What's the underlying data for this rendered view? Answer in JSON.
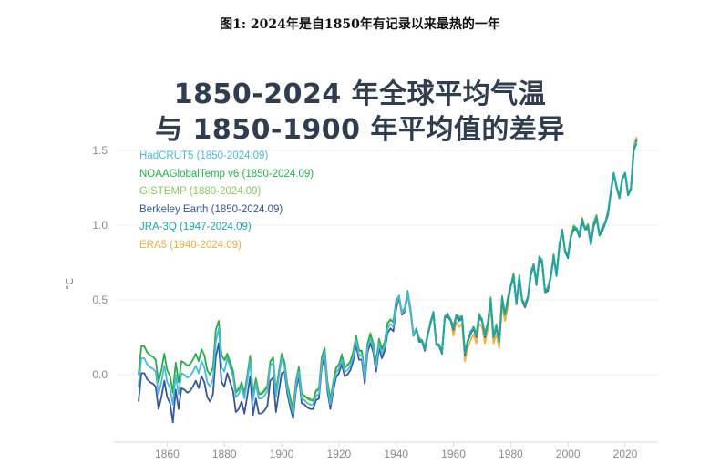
{
  "caption": "图1: 2024年是自1850年有记录以来最热的一年",
  "chart_data": {
    "type": "line",
    "title": [
      "1850-2024 年全球平均气温",
      "与 1850-1900 年平均值的差异"
    ],
    "ylabel": "°C",
    "xlim": [
      1840,
      2033
    ],
    "ylim": [
      -0.45,
      1.62
    ],
    "xticks": [
      1860,
      1880,
      1900,
      1920,
      1940,
      1960,
      1980,
      2000,
      2020
    ],
    "yticks": [
      0.0,
      0.5,
      1.0,
      1.5
    ],
    "ytick_labels": [
      "0.0",
      "0.5",
      "1.0",
      "1.5"
    ],
    "grid": "horizontal",
    "legend_position": "top-left",
    "series": [
      {
        "name": "HadCRUT5 (1850-2024.09)",
        "color": "#4db8dc",
        "start": 1850,
        "values": [
          -0.08,
          0.11,
          0.11,
          0.07,
          0.05,
          0.04,
          0.02,
          -0.13,
          -0.05,
          0.06,
          -0.05,
          -0.09,
          -0.2,
          0.0,
          -0.13,
          0.01,
          0.0,
          -0.02,
          -0.01,
          0.02,
          0.06,
          0.01,
          0.09,
          0.05,
          -0.05,
          -0.08,
          -0.03,
          0.22,
          0.31,
          0.05,
          0.02,
          0.11,
          0.05,
          -0.01,
          -0.15,
          -0.13,
          -0.08,
          -0.16,
          -0.04,
          0.09,
          -0.17,
          -0.06,
          -0.16,
          -0.16,
          -0.14,
          -0.11,
          0.06,
          0.08,
          -0.15,
          -0.02,
          0.11,
          0.05,
          -0.1,
          -0.19,
          -0.26,
          -0.07,
          0.02,
          -0.16,
          -0.17,
          -0.19,
          -0.2,
          -0.2,
          -0.14,
          -0.13,
          0.08,
          0.15,
          -0.08,
          -0.2,
          -0.08,
          0.01,
          0.04,
          0.1,
          0.02,
          0.03,
          0.06,
          0.12,
          0.23,
          0.13,
          0.13,
          -0.03,
          0.18,
          0.24,
          0.18,
          0.05,
          0.21,
          0.14,
          0.19,
          0.31,
          0.34,
          0.32,
          0.47,
          0.53,
          0.41,
          0.43,
          0.55,
          0.43,
          0.27,
          0.31,
          0.23,
          0.23,
          0.17,
          0.27,
          0.35,
          0.42,
          0.21,
          0.2,
          0.15,
          0.39,
          0.4,
          0.37,
          0.31,
          0.4,
          0.37,
          0.39,
          0.14,
          0.23,
          0.28,
          0.32,
          0.26,
          0.39,
          0.37,
          0.26,
          0.35,
          0.5,
          0.26,
          0.32,
          0.23,
          0.51,
          0.41,
          0.5,
          0.6,
          0.66,
          0.48,
          0.65,
          0.5,
          0.46,
          0.52,
          0.67,
          0.74,
          0.61,
          0.79,
          0.75,
          0.56,
          0.57,
          0.66,
          0.79,
          0.67,
          0.86,
          0.97,
          0.83,
          0.79,
          0.93,
          0.98,
          0.98,
          0.93,
          1.03,
          0.98,
          0.99,
          0.88,
          1.0,
          1.05,
          0.94,
          0.97,
          1.02,
          1.08,
          1.23,
          1.35,
          1.26,
          1.19,
          1.32,
          1.35,
          1.21,
          1.25,
          1.52,
          1.56
        ]
      },
      {
        "name": "NOAAGlobalTemp v6 (1850-2024.09)",
        "color": "#22b04a",
        "start": 1850,
        "values": [
          0.0,
          0.19,
          0.19,
          0.15,
          0.13,
          0.12,
          0.1,
          -0.05,
          0.03,
          0.14,
          0.03,
          -0.01,
          -0.12,
          0.08,
          -0.05,
          0.09,
          0.08,
          0.06,
          0.07,
          0.1,
          0.14,
          0.09,
          0.17,
          0.13,
          0.03,
          0.0,
          0.05,
          0.3,
          0.36,
          0.13,
          0.1,
          0.14,
          0.08,
          0.02,
          -0.12,
          -0.1,
          -0.05,
          -0.13,
          -0.01,
          0.12,
          -0.14,
          -0.03,
          -0.13,
          -0.13,
          -0.11,
          -0.08,
          0.09,
          0.11,
          -0.12,
          0.01,
          0.14,
          0.08,
          -0.07,
          -0.16,
          -0.23,
          -0.04,
          0.05,
          -0.13,
          -0.14,
          -0.16,
          -0.17,
          -0.17,
          -0.11,
          -0.1,
          0.11,
          0.18,
          -0.05,
          -0.17,
          -0.05,
          0.04,
          0.07,
          0.13,
          0.05,
          0.06,
          0.09,
          0.15,
          0.26,
          0.16,
          0.16,
          0.0,
          0.21,
          0.27,
          0.21,
          0.08,
          0.24,
          0.17,
          0.22,
          0.34,
          0.37,
          0.35,
          0.5,
          0.52,
          0.42,
          0.44,
          0.56,
          0.44,
          0.26,
          0.3,
          0.24,
          0.22,
          0.18,
          0.26,
          0.36,
          0.41,
          0.2,
          0.19,
          0.16,
          0.38,
          0.41,
          0.36,
          0.32,
          0.39,
          0.38,
          0.38,
          0.15,
          0.22,
          0.29,
          0.31,
          0.27,
          0.4,
          0.36,
          0.27,
          0.34,
          0.51,
          0.25,
          0.33,
          0.22,
          0.52,
          0.4,
          0.51,
          0.59,
          0.67,
          0.47,
          0.66,
          0.49,
          0.47,
          0.51,
          0.68,
          0.73,
          0.62,
          0.78,
          0.76,
          0.55,
          0.58,
          0.65,
          0.8,
          0.66,
          0.87,
          0.96,
          0.82,
          0.8,
          0.92,
          0.99,
          0.97,
          0.94,
          1.04,
          0.97,
          1.0,
          0.87,
          1.01,
          1.06,
          0.93,
          0.98,
          1.01,
          1.09,
          1.22,
          1.34,
          1.25,
          1.18,
          1.31,
          1.34,
          1.2,
          1.24,
          1.5,
          1.55
        ]
      },
      {
        "name": "GISTEMP (1880-2024.09)",
        "color": "#8cc860",
        "start": 1880,
        "values": [
          0.09,
          0.13,
          0.09,
          0.03,
          -0.1,
          -0.09,
          -0.06,
          -0.12,
          0.0,
          0.13,
          -0.13,
          -0.02,
          -0.12,
          -0.12,
          -0.1,
          -0.07,
          0.08,
          0.12,
          -0.11,
          0.02,
          0.13,
          0.09,
          -0.06,
          -0.15,
          -0.22,
          -0.05,
          0.04,
          -0.12,
          -0.15,
          -0.15,
          -0.16,
          -0.18,
          -0.1,
          -0.09,
          0.12,
          0.17,
          -0.04,
          -0.16,
          -0.06,
          0.05,
          0.06,
          0.14,
          0.04,
          0.07,
          0.08,
          0.16,
          0.25,
          0.17,
          0.15,
          0.01,
          0.2,
          0.28,
          0.2,
          0.09,
          0.23,
          0.18,
          0.21,
          0.35,
          0.36,
          0.36,
          0.49,
          0.53,
          0.41,
          0.45,
          0.55,
          0.45,
          0.27,
          0.31,
          0.25,
          0.23,
          0.19,
          0.27,
          0.35,
          0.42,
          0.21,
          0.2,
          0.17,
          0.39,
          0.4,
          0.37,
          0.33,
          0.4,
          0.39,
          0.39,
          0.16,
          0.23,
          0.28,
          0.32,
          0.28,
          0.41,
          0.37,
          0.28,
          0.35,
          0.52,
          0.26,
          0.34,
          0.23,
          0.53,
          0.41,
          0.52,
          0.6,
          0.68,
          0.48,
          0.67,
          0.5,
          0.48,
          0.52,
          0.69,
          0.74,
          0.63,
          0.79,
          0.77,
          0.56,
          0.59,
          0.66,
          0.81,
          0.67,
          0.88,
          0.97,
          0.83,
          0.81,
          0.93,
          1.0,
          0.98,
          0.95,
          1.05,
          0.98,
          1.01,
          0.88,
          1.02,
          1.07,
          0.94,
          0.99,
          1.02,
          1.1,
          1.23,
          1.35,
          1.26,
          1.19,
          1.32,
          1.35,
          1.21,
          1.25,
          1.51,
          1.56
        ]
      },
      {
        "name": "Berkeley Earth (1850-2024.09)",
        "color": "#35579e",
        "start": 1850,
        "values": [
          -0.18,
          0.01,
          0.01,
          -0.03,
          -0.05,
          -0.06,
          -0.08,
          -0.23,
          -0.15,
          -0.04,
          -0.15,
          -0.19,
          -0.32,
          -0.1,
          -0.23,
          -0.09,
          -0.1,
          -0.12,
          -0.11,
          -0.08,
          -0.04,
          -0.09,
          -0.01,
          -0.05,
          -0.15,
          -0.18,
          -0.13,
          0.12,
          0.21,
          -0.05,
          -0.08,
          0.01,
          -0.05,
          -0.11,
          -0.25,
          -0.23,
          -0.18,
          -0.26,
          -0.14,
          -0.01,
          -0.27,
          -0.16,
          -0.26,
          -0.26,
          -0.24,
          -0.21,
          -0.04,
          -0.02,
          -0.25,
          -0.12,
          0.01,
          0.02,
          -0.13,
          -0.22,
          -0.29,
          -0.1,
          -0.01,
          -0.19,
          -0.2,
          -0.22,
          -0.23,
          -0.23,
          -0.17,
          -0.16,
          0.05,
          0.12,
          -0.11,
          -0.23,
          -0.11,
          -0.02,
          0.01,
          0.07,
          -0.01,
          0.0,
          0.03,
          0.09,
          0.2,
          0.1,
          0.1,
          -0.06,
          0.15,
          0.21,
          0.15,
          0.02,
          0.18,
          0.11,
          0.16,
          0.28,
          0.31,
          0.29,
          0.44,
          0.52,
          0.4,
          0.42,
          0.54,
          0.42,
          0.26,
          0.3,
          0.22,
          0.22,
          0.16,
          0.26,
          0.34,
          0.41,
          0.2,
          0.19,
          0.14,
          0.38,
          0.39,
          0.36,
          0.3,
          0.39,
          0.36,
          0.38,
          0.13,
          0.22,
          0.27,
          0.31,
          0.25,
          0.38,
          0.36,
          0.25,
          0.34,
          0.49,
          0.25,
          0.31,
          0.22,
          0.5,
          0.4,
          0.49,
          0.59,
          0.65,
          0.47,
          0.64,
          0.49,
          0.45,
          0.51,
          0.66,
          0.73,
          0.6,
          0.78,
          0.74,
          0.55,
          0.56,
          0.65,
          0.78,
          0.66,
          0.85,
          0.96,
          0.82,
          0.78,
          0.92,
          0.97,
          0.97,
          0.92,
          1.02,
          0.97,
          0.98,
          0.87,
          0.99,
          1.04,
          0.93,
          0.96,
          1.01,
          1.07,
          1.22,
          1.34,
          1.25,
          1.18,
          1.31,
          1.34,
          1.2,
          1.24,
          1.51,
          1.57
        ]
      },
      {
        "name": "JRA-3Q (1947-2024.09)",
        "color": "#1ea6a2",
        "start": 1947,
        "values": [
          0.31,
          0.23,
          0.23,
          0.17,
          0.27,
          0.35,
          0.42,
          0.21,
          0.2,
          0.15,
          0.39,
          0.4,
          0.37,
          0.31,
          0.4,
          0.37,
          0.39,
          0.14,
          0.23,
          0.28,
          0.32,
          0.26,
          0.39,
          0.37,
          0.26,
          0.35,
          0.5,
          0.26,
          0.32,
          0.23,
          0.51,
          0.41,
          0.5,
          0.6,
          0.66,
          0.48,
          0.65,
          0.5,
          0.46,
          0.52,
          0.67,
          0.74,
          0.61,
          0.79,
          0.75,
          0.56,
          0.57,
          0.66,
          0.79,
          0.67,
          0.86,
          0.97,
          0.83,
          0.79,
          0.93,
          0.98,
          0.98,
          0.93,
          1.03,
          0.98,
          0.99,
          0.88,
          1.0,
          1.05,
          0.94,
          0.97,
          1.02,
          1.08,
          1.23,
          1.35,
          1.26,
          1.19,
          1.32,
          1.35,
          1.21,
          1.25,
          1.52,
          1.54
        ]
      },
      {
        "name": "ERA5 (1940-2024.09)",
        "color": "#f0ae3c",
        "start": 1940,
        "values": [
          0.47,
          0.53,
          0.41,
          0.43,
          0.55,
          0.43,
          0.27,
          0.31,
          0.23,
          0.23,
          0.17,
          0.27,
          0.35,
          0.42,
          0.21,
          0.2,
          0.15,
          0.39,
          0.4,
          0.37,
          0.26,
          0.35,
          0.32,
          0.34,
          0.09,
          0.18,
          0.23,
          0.27,
          0.21,
          0.34,
          0.32,
          0.21,
          0.3,
          0.45,
          0.21,
          0.27,
          0.18,
          0.46,
          0.36,
          0.45,
          0.6,
          0.66,
          0.48,
          0.65,
          0.5,
          0.46,
          0.52,
          0.67,
          0.74,
          0.61,
          0.79,
          0.75,
          0.56,
          0.57,
          0.66,
          0.79,
          0.67,
          0.86,
          0.97,
          0.83,
          0.79,
          0.93,
          0.98,
          0.98,
          0.93,
          1.03,
          0.98,
          0.99,
          0.88,
          1.0,
          1.05,
          0.94,
          0.97,
          1.02,
          1.08,
          1.23,
          1.35,
          1.26,
          1.19,
          1.32,
          1.35,
          1.21,
          1.25,
          1.54,
          1.59
        ]
      }
    ]
  }
}
